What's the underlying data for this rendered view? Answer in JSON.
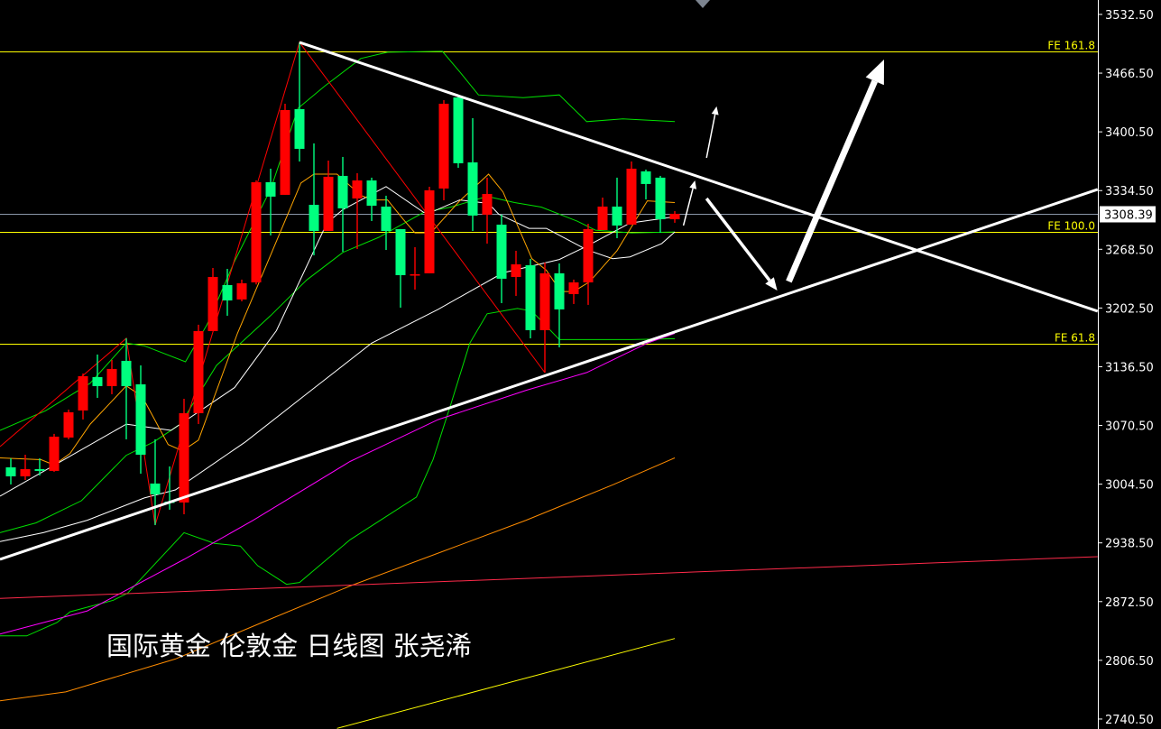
{
  "chart_data": {
    "type": "candlestick",
    "caption": "国际黄金 伦敦金 日线图 张尧浠",
    "y_axis": {
      "ylim": [
        2729.3,
        3548.7
      ],
      "ticks": [
        "3532.50",
        "3466.50",
        "3400.50",
        "3334.50",
        "3268.50",
        "3202.50",
        "3136.50",
        "3070.50",
        "3004.50",
        "2938.50",
        "2872.50",
        "2806.50",
        "2740.50"
      ]
    },
    "x_index_range": [
      -0.75,
      75.3
    ],
    "current_price": {
      "value": 3308.39,
      "label": "3308.39",
      "color": "#8a96a8"
    },
    "colors": {
      "bullish": "#ff0000",
      "bearish": "#00ff7f"
    },
    "candles_ohlc": [
      [
        3023.4,
        3033.6,
        3004.2,
        3013.3
      ],
      [
        3013.3,
        3037.6,
        3009.2,
        3021.4
      ],
      [
        3021.4,
        3033.6,
        3014.3,
        3019.4
      ],
      [
        3019.4,
        3061.0,
        3018.4,
        3057.9
      ],
      [
        3056.9,
        3088.3,
        3054.9,
        3085.3
      ],
      [
        3087.3,
        3128.9,
        3077.2,
        3125.9
      ],
      [
        3124.8,
        3150.2,
        3101.5,
        3114.7
      ],
      [
        3114.7,
        3144.1,
        3105.6,
        3134.0
      ],
      [
        3143.1,
        3168.4,
        3054.9,
        3114.7
      ],
      [
        3116.7,
        3138.0,
        3016.3,
        3037.6
      ],
      [
        3005.2,
        3054.9,
        2958.5,
        2993.0
      ],
      [
        2984.9,
        3024.4,
        2975.8,
        2983.9
      ],
      [
        2983.9,
        3100.5,
        2970.7,
        3084.3
      ],
      [
        3084.3,
        3183.7,
        3072.1,
        3176.6
      ],
      [
        3176.6,
        3247.5,
        3176.6,
        3237.4
      ],
      [
        3228.3,
        3246.5,
        3193.8,
        3211.0
      ],
      [
        3212.1,
        3234.4,
        3210.0,
        3230.3
      ],
      [
        3231.3,
        3346.0,
        3229.0,
        3343.9
      ],
      [
        3343.9,
        3359.1,
        3284.1,
        3327.7
      ],
      [
        3329.7,
        3432.1,
        3329.7,
        3425.0
      ],
      [
        3426.0,
        3501.1,
        3367.2,
        3381.4
      ],
      [
        3318.5,
        3387.5,
        3261.7,
        3289.1
      ],
      [
        3289.1,
        3368.2,
        3289.1,
        3350.0
      ],
      [
        3351.0,
        3372.3,
        3265.8,
        3314.5
      ],
      [
        3325.6,
        3354.0,
        3268.8,
        3345.9
      ],
      [
        3345.9,
        3349.0,
        3300.3,
        3317.5
      ],
      [
        3316.5,
        3328.7,
        3267.8,
        3289.1
      ],
      [
        3291.2,
        3291.2,
        3202.9,
        3239.4
      ],
      [
        3239.4,
        3270.9,
        3223.2,
        3240.4
      ],
      [
        3241.5,
        3338.8,
        3241.5,
        3334.8
      ],
      [
        3336.8,
        3436.2,
        3323.6,
        3432.1
      ],
      [
        3439.2,
        3441.0,
        3360.1,
        3365.2
      ],
      [
        3366.2,
        3415.9,
        3289.1,
        3306.4
      ],
      [
        3307.4,
        3349.0,
        3274.9,
        3330.7
      ],
      [
        3296.2,
        3307.4,
        3208.0,
        3235.4
      ],
      [
        3237.4,
        3266.8,
        3216.1,
        3251.6
      ],
      [
        3250.6,
        3257.7,
        3168.4,
        3177.6
      ],
      [
        3177.6,
        3253.6,
        3129.9,
        3241.5
      ],
      [
        3241.5,
        3252.6,
        3158.3,
        3200.9
      ],
      [
        3218.1,
        3234.4,
        3207.0,
        3231.3
      ],
      [
        3231.3,
        3297.2,
        3206.0,
        3291.2
      ],
      [
        3290.1,
        3326.6,
        3290.1,
        3316.5
      ],
      [
        3316.5,
        3349.0,
        3281.0,
        3295.2
      ],
      [
        3296.2,
        3367.2,
        3296.2,
        3359.1
      ],
      [
        3356.1,
        3358.1,
        3324.6,
        3341.9
      ],
      [
        3349.0,
        3351.0,
        3287.1,
        3302.3
      ],
      [
        3302.3,
        3311.4,
        3298.3,
        3308.39
      ]
    ],
    "fibo_levels": [
      {
        "label": "FE 161.8",
        "price": 3490.9,
        "color": "#ffff00"
      },
      {
        "label": "FE 100.0",
        "price": 3288.1,
        "color": "#ffff00"
      },
      {
        "label": "FE 61.8",
        "price": 3162.4,
        "color": "#ffff00"
      }
    ],
    "indicators": [
      {
        "color": "#00e000",
        "points": [
          [
            -0.75,
            3065
          ],
          [
            2.4,
            3087
          ],
          [
            5.5,
            3118
          ],
          [
            8,
            3163
          ],
          [
            9.25,
            3160
          ],
          [
            12.1,
            3142
          ],
          [
            13.6,
            3184
          ],
          [
            15.5,
            3255
          ],
          [
            18,
            3336
          ],
          [
            19.9,
            3427
          ],
          [
            21.75,
            3452
          ],
          [
            24.25,
            3483
          ],
          [
            26.1,
            3490
          ],
          [
            29.9,
            3491
          ],
          [
            31.1,
            3468
          ],
          [
            32.4,
            3442
          ],
          [
            35.5,
            3439
          ],
          [
            38,
            3442
          ],
          [
            39.9,
            3412
          ],
          [
            42.4,
            3415
          ],
          [
            46,
            3412
          ]
        ]
      },
      {
        "color": "#00e000",
        "points": [
          [
            -0.75,
            2950
          ],
          [
            1.75,
            2961
          ],
          [
            4.9,
            2986
          ],
          [
            8,
            3037
          ],
          [
            9.9,
            3052
          ],
          [
            11.75,
            3072
          ],
          [
            14.25,
            3138
          ],
          [
            18,
            3194
          ],
          [
            20.5,
            3234
          ],
          [
            23,
            3265
          ],
          [
            25.5,
            3282
          ],
          [
            28.6,
            3310
          ],
          [
            30.5,
            3316
          ],
          [
            33,
            3328
          ],
          [
            34.9,
            3321
          ],
          [
            36.75,
            3316
          ],
          [
            39.25,
            3300
          ],
          [
            40.5,
            3290
          ],
          [
            43,
            3287
          ],
          [
            46,
            3288
          ]
        ]
      },
      {
        "color": "#00e000",
        "points": [
          [
            -0.75,
            2834
          ],
          [
            1.1,
            2834
          ],
          [
            3.2,
            2849
          ],
          [
            4.1,
            2861
          ],
          [
            7.1,
            2874
          ],
          [
            8.1,
            2882
          ],
          [
            12,
            2950
          ],
          [
            14.1,
            2938
          ],
          [
            15.9,
            2935
          ],
          [
            17.1,
            2913
          ],
          [
            19.1,
            2892
          ],
          [
            20,
            2894
          ],
          [
            23.5,
            2942
          ],
          [
            28.1,
            2990
          ],
          [
            29.25,
            3032
          ],
          [
            30.5,
            3095
          ],
          [
            31.8,
            3163
          ],
          [
            33,
            3196
          ],
          [
            35.1,
            3202
          ],
          [
            36.1,
            3199
          ],
          [
            38,
            3167
          ],
          [
            43,
            3167
          ],
          [
            46,
            3168
          ]
        ]
      },
      {
        "color": "#ffffff",
        "points": [
          [
            -0.75,
            2991
          ],
          [
            8,
            3072
          ],
          [
            11.1,
            3065
          ],
          [
            15.5,
            3113
          ],
          [
            18.4,
            3177
          ],
          [
            21.9,
            3298
          ],
          [
            23,
            3313
          ],
          [
            26,
            3339
          ],
          [
            28.6,
            3310
          ],
          [
            29.1,
            3310
          ],
          [
            31.1,
            3324
          ],
          [
            33.1,
            3320
          ],
          [
            33.8,
            3308
          ],
          [
            35.9,
            3292
          ],
          [
            37.1,
            3292
          ],
          [
            39.9,
            3268
          ],
          [
            41.7,
            3258
          ],
          [
            42.9,
            3260
          ],
          [
            45.1,
            3275
          ],
          [
            46,
            3288
          ]
        ]
      },
      {
        "color": "#ffffff",
        "points": [
          [
            -0.75,
            2940
          ],
          [
            2.25,
            2950
          ],
          [
            5.3,
            2964
          ],
          [
            9.25,
            2989
          ],
          [
            11.4,
            2998
          ],
          [
            16.25,
            3052
          ],
          [
            20.5,
            3106
          ],
          [
            25,
            3163
          ],
          [
            29.6,
            3201
          ],
          [
            34.1,
            3242
          ],
          [
            38,
            3257
          ],
          [
            39.9,
            3272
          ],
          [
            42.9,
            3298
          ],
          [
            46,
            3305
          ]
        ]
      },
      {
        "color": "#ffa500",
        "points": [
          [
            -0.75,
            3034
          ],
          [
            2.1,
            3032
          ],
          [
            3,
            3026
          ],
          [
            4.1,
            3039
          ],
          [
            5.5,
            3072
          ],
          [
            8,
            3115
          ],
          [
            9.1,
            3103
          ],
          [
            10.9,
            3049
          ],
          [
            11.9,
            3042
          ],
          [
            13,
            3054
          ],
          [
            15.7,
            3174
          ],
          [
            18,
            3262
          ],
          [
            20.1,
            3343
          ],
          [
            21,
            3353
          ],
          [
            22.6,
            3353
          ],
          [
            24.25,
            3329
          ],
          [
            25.1,
            3324
          ],
          [
            26.1,
            3324
          ],
          [
            27.2,
            3302
          ],
          [
            28,
            3287
          ],
          [
            29.1,
            3287
          ],
          [
            31.1,
            3323
          ],
          [
            33.1,
            3353
          ],
          [
            34.1,
            3333
          ],
          [
            36.1,
            3258
          ],
          [
            37.1,
            3245
          ],
          [
            38.1,
            3221
          ],
          [
            39,
            3221
          ],
          [
            40.1,
            3232
          ],
          [
            42,
            3267
          ],
          [
            44.1,
            3323
          ],
          [
            46,
            3321
          ]
        ]
      },
      {
        "color": "#ff00ff",
        "points": [
          [
            -0.75,
            2836
          ],
          [
            5.3,
            2862
          ],
          [
            12,
            2920
          ],
          [
            16.8,
            2964
          ],
          [
            23.5,
            3030
          ],
          [
            29.6,
            3077
          ],
          [
            35.7,
            3110
          ],
          [
            39.9,
            3130
          ],
          [
            44.1,
            3163
          ],
          [
            46,
            3174
          ]
        ]
      },
      {
        "color": "#ff8c00",
        "points": [
          [
            -0.75,
            2761
          ],
          [
            3.8,
            2771
          ],
          [
            11.4,
            2808
          ],
          [
            17.4,
            2849
          ],
          [
            23.5,
            2890
          ],
          [
            29.6,
            2927
          ],
          [
            35.7,
            2964
          ],
          [
            41.75,
            3004
          ],
          [
            46,
            3034
          ]
        ]
      },
      {
        "color": "#ff2a4a",
        "points": [
          [
            -0.75,
            2876
          ],
          [
            75.3,
            2923
          ]
        ]
      },
      {
        "color": "#ffff00",
        "points": [
          [
            22.6,
            2730
          ],
          [
            46,
            2831
          ]
        ]
      }
    ],
    "annotations": {
      "zigzag": {
        "color": "#ff0000",
        "points": [
          [
            -0.75,
            3046.7
          ],
          [
            8,
            3168.4
          ],
          [
            10,
            2958.5
          ],
          [
            20,
            3501.1
          ],
          [
            37,
            3129.9
          ]
        ]
      },
      "trendlines": [
        {
          "color": "#ffffff",
          "points": [
            [
              20,
              3501.1
            ],
            [
              75.3,
              3198.9
            ]
          ]
        },
        {
          "color": "#ffffff",
          "points": [
            [
              -0.75,
              2920.0
            ],
            [
              75.3,
              3335.8
            ]
          ]
        }
      ],
      "arrows": [
        {
          "color": "#ffffff",
          "size": "small",
          "from": [
            46.6,
            3295.2
          ],
          "to": [
            47.4,
            3345.9
          ]
        },
        {
          "color": "#ffffff",
          "size": "small",
          "from": [
            48.2,
            3371.3
          ],
          "to": [
            48.9,
            3429.1
          ]
        },
        {
          "color": "#ffffff",
          "size": "medium",
          "from": [
            48.2,
            3325.6
          ],
          "to": [
            53.1,
            3222.2
          ]
        },
        {
          "color": "#ffffff",
          "size": "large",
          "from": [
            53.9,
            3232.3
          ],
          "to": [
            60.5,
            3481.8
          ]
        }
      ]
    }
  }
}
